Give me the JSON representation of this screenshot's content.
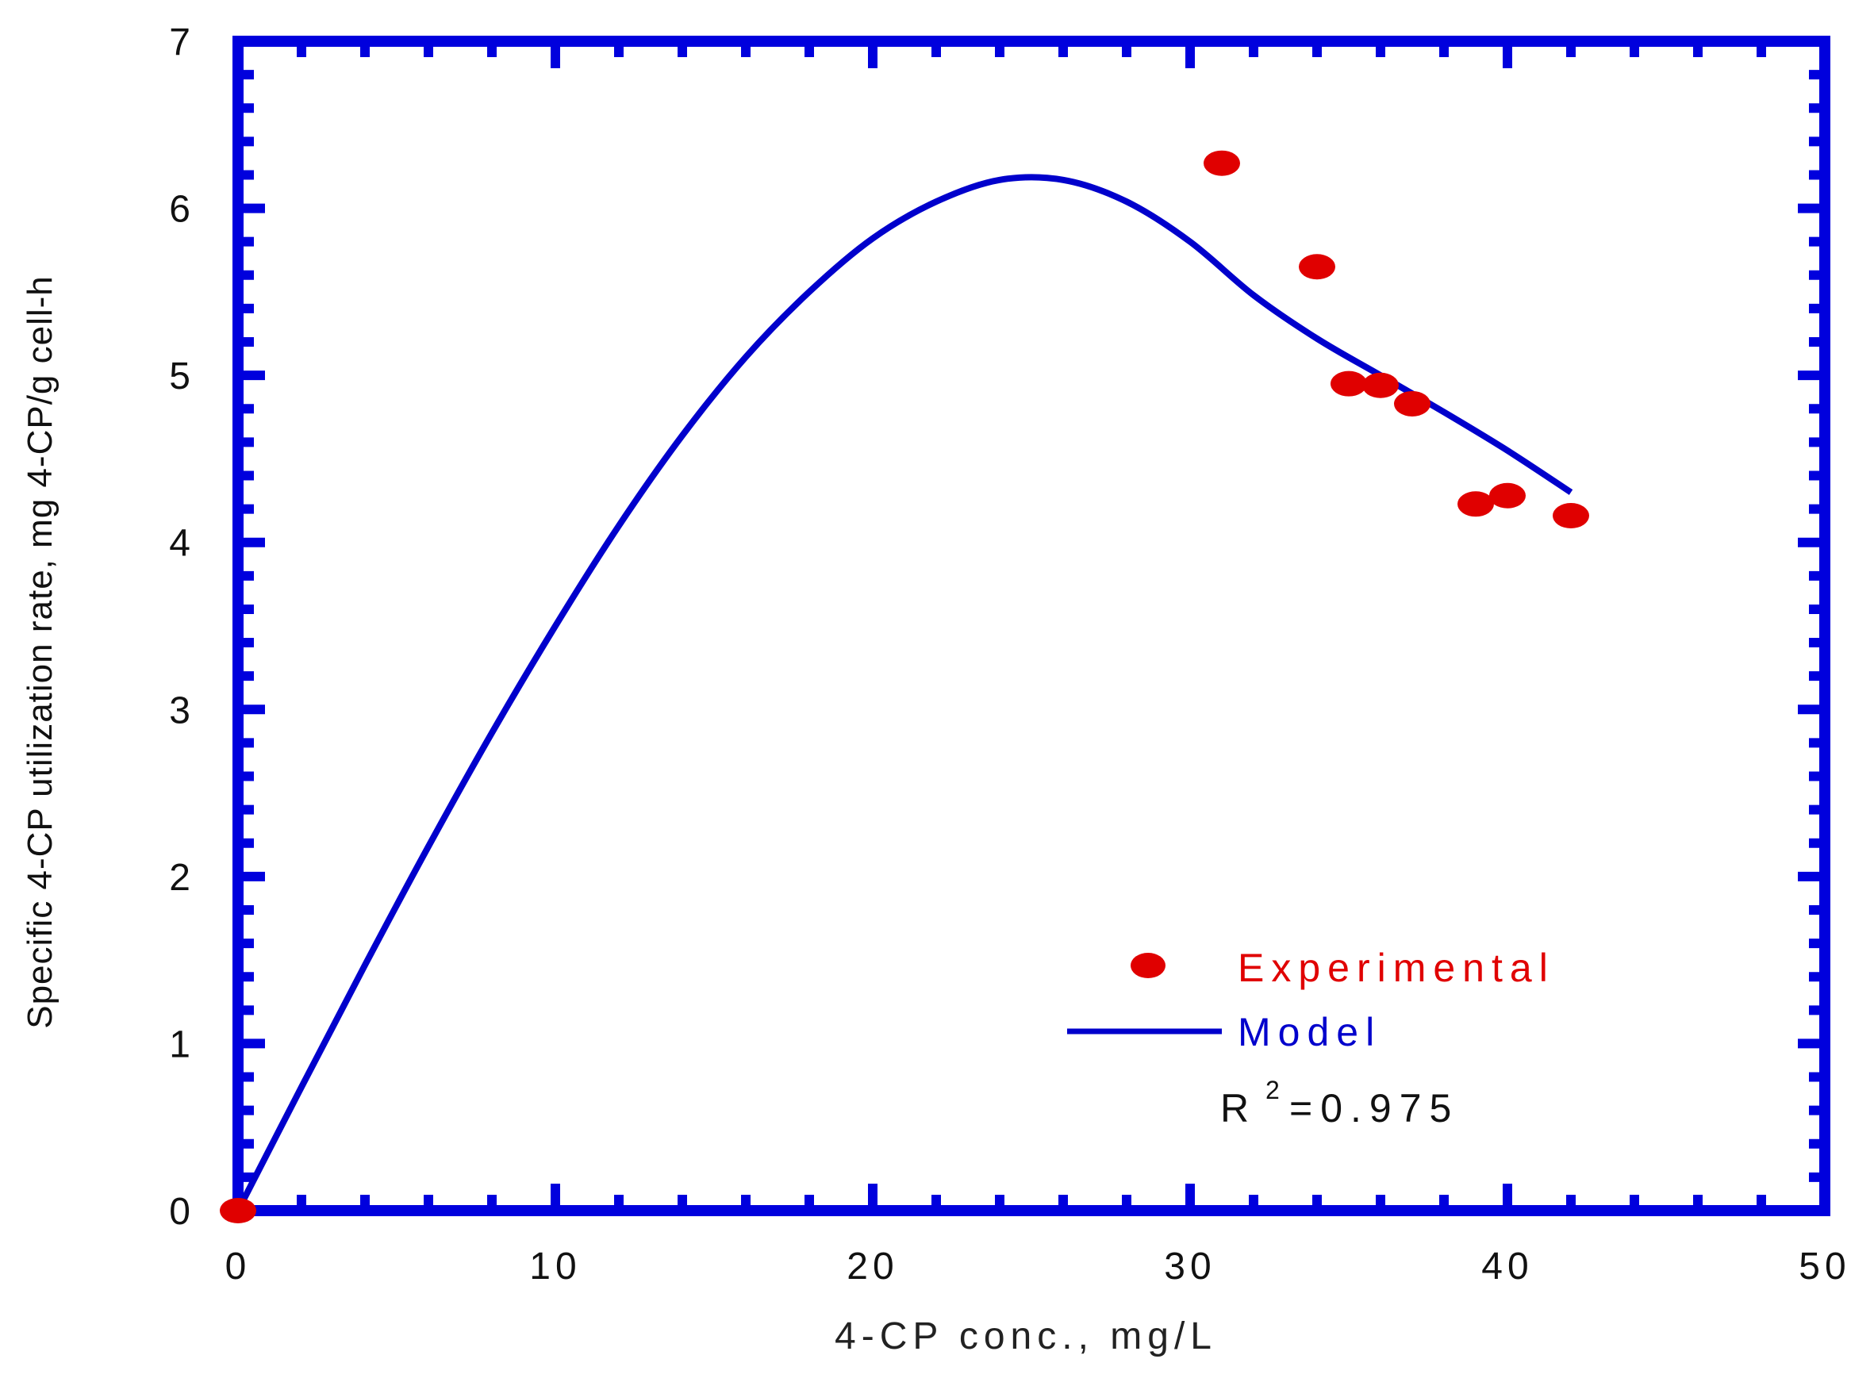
{
  "chart_data": {
    "type": "scatter",
    "title": "",
    "xlabel": "4-CP conc., mg/L",
    "ylabel": "Specific 4-CP utilization rate, mg 4-CP/g cell-h",
    "xlim": [
      0,
      50
    ],
    "ylim": [
      0,
      7
    ],
    "x_ticks": [
      0,
      10,
      20,
      30,
      40,
      50
    ],
    "y_ticks": [
      0,
      1,
      2,
      3,
      4,
      5,
      6,
      7
    ],
    "grid": false,
    "legend_position": "bottom-right",
    "series": [
      {
        "name": "Experimental",
        "kind": "scatter",
        "color": "#e00000",
        "points": [
          {
            "x": 0,
            "y": 0
          },
          {
            "x": 31,
            "y": 6.27
          },
          {
            "x": 34,
            "y": 5.65
          },
          {
            "x": 35,
            "y": 4.95
          },
          {
            "x": 36,
            "y": 4.94
          },
          {
            "x": 37,
            "y": 4.83
          },
          {
            "x": 39,
            "y": 4.23
          },
          {
            "x": 40,
            "y": 4.28
          },
          {
            "x": 42,
            "y": 4.16
          }
        ]
      },
      {
        "name": "Model",
        "kind": "line",
        "color": "#0000cc",
        "points": [
          {
            "x": 0,
            "y": 0
          },
          {
            "x": 2,
            "y": 0.74
          },
          {
            "x": 4,
            "y": 1.47
          },
          {
            "x": 6,
            "y": 2.18
          },
          {
            "x": 8,
            "y": 2.86
          },
          {
            "x": 10,
            "y": 3.5
          },
          {
            "x": 12,
            "y": 4.1
          },
          {
            "x": 14,
            "y": 4.64
          },
          {
            "x": 16,
            "y": 5.11
          },
          {
            "x": 18,
            "y": 5.5
          },
          {
            "x": 20,
            "y": 5.82
          },
          {
            "x": 22,
            "y": 6.04
          },
          {
            "x": 24,
            "y": 6.17
          },
          {
            "x": 26,
            "y": 6.17
          },
          {
            "x": 28,
            "y": 6.04
          },
          {
            "x": 30,
            "y": 5.8
          },
          {
            "x": 32,
            "y": 5.48
          },
          {
            "x": 34,
            "y": 5.22
          },
          {
            "x": 36,
            "y": 5.0
          },
          {
            "x": 38,
            "y": 4.78
          },
          {
            "x": 40,
            "y": 4.55
          },
          {
            "x": 42,
            "y": 4.3
          }
        ]
      }
    ],
    "annotations": [
      {
        "label": "R",
        "superscript": "2",
        "value": "=0.975"
      }
    ]
  }
}
